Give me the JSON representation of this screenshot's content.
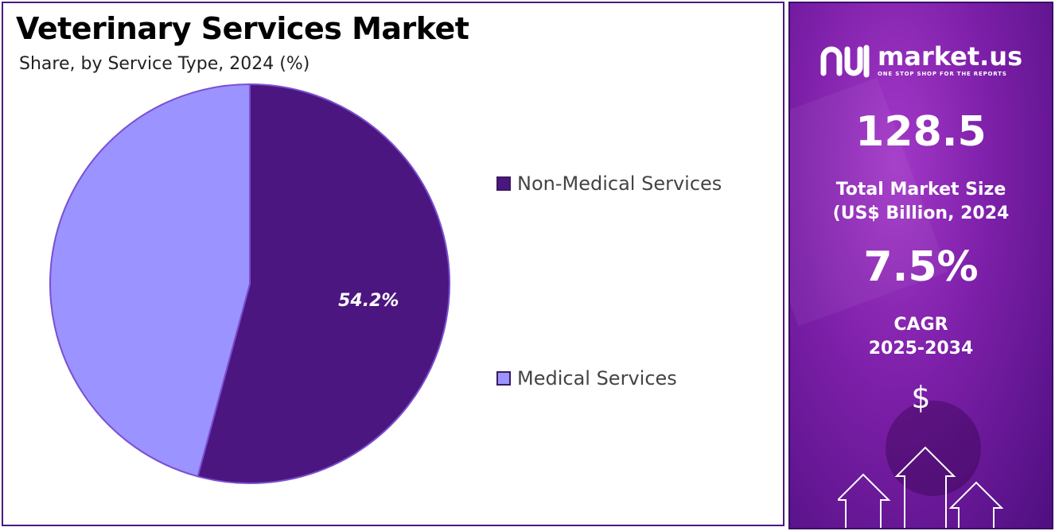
{
  "title": "Veterinary Services Market",
  "subtitle": "Share, by Service Type, 2024 (%)",
  "chart_data": {
    "type": "pie",
    "title": "Veterinary Services Market",
    "subtitle": "Share, by Service Type, 2024 (%)",
    "categories": [
      "Non-Medical Services",
      "Medical Services"
    ],
    "values": [
      54.2,
      45.8
    ],
    "data_labels": [
      "54.2%",
      ""
    ],
    "colors": [
      "#4b1680",
      "#9b93ff"
    ],
    "legend": "right"
  },
  "sidebar": {
    "brand_name": "market.us",
    "brand_tagline": "ONE STOP SHOP FOR THE REPORTS",
    "market_size_value": "128.5",
    "market_size_label_line1": "Total Market Size",
    "market_size_label_line2": "(US$ Billion, 2024",
    "cagr_value": "7.5%",
    "cagr_label_line1": "CAGR",
    "cagr_label_line2": "2025-2034",
    "currency_symbol": "$"
  }
}
